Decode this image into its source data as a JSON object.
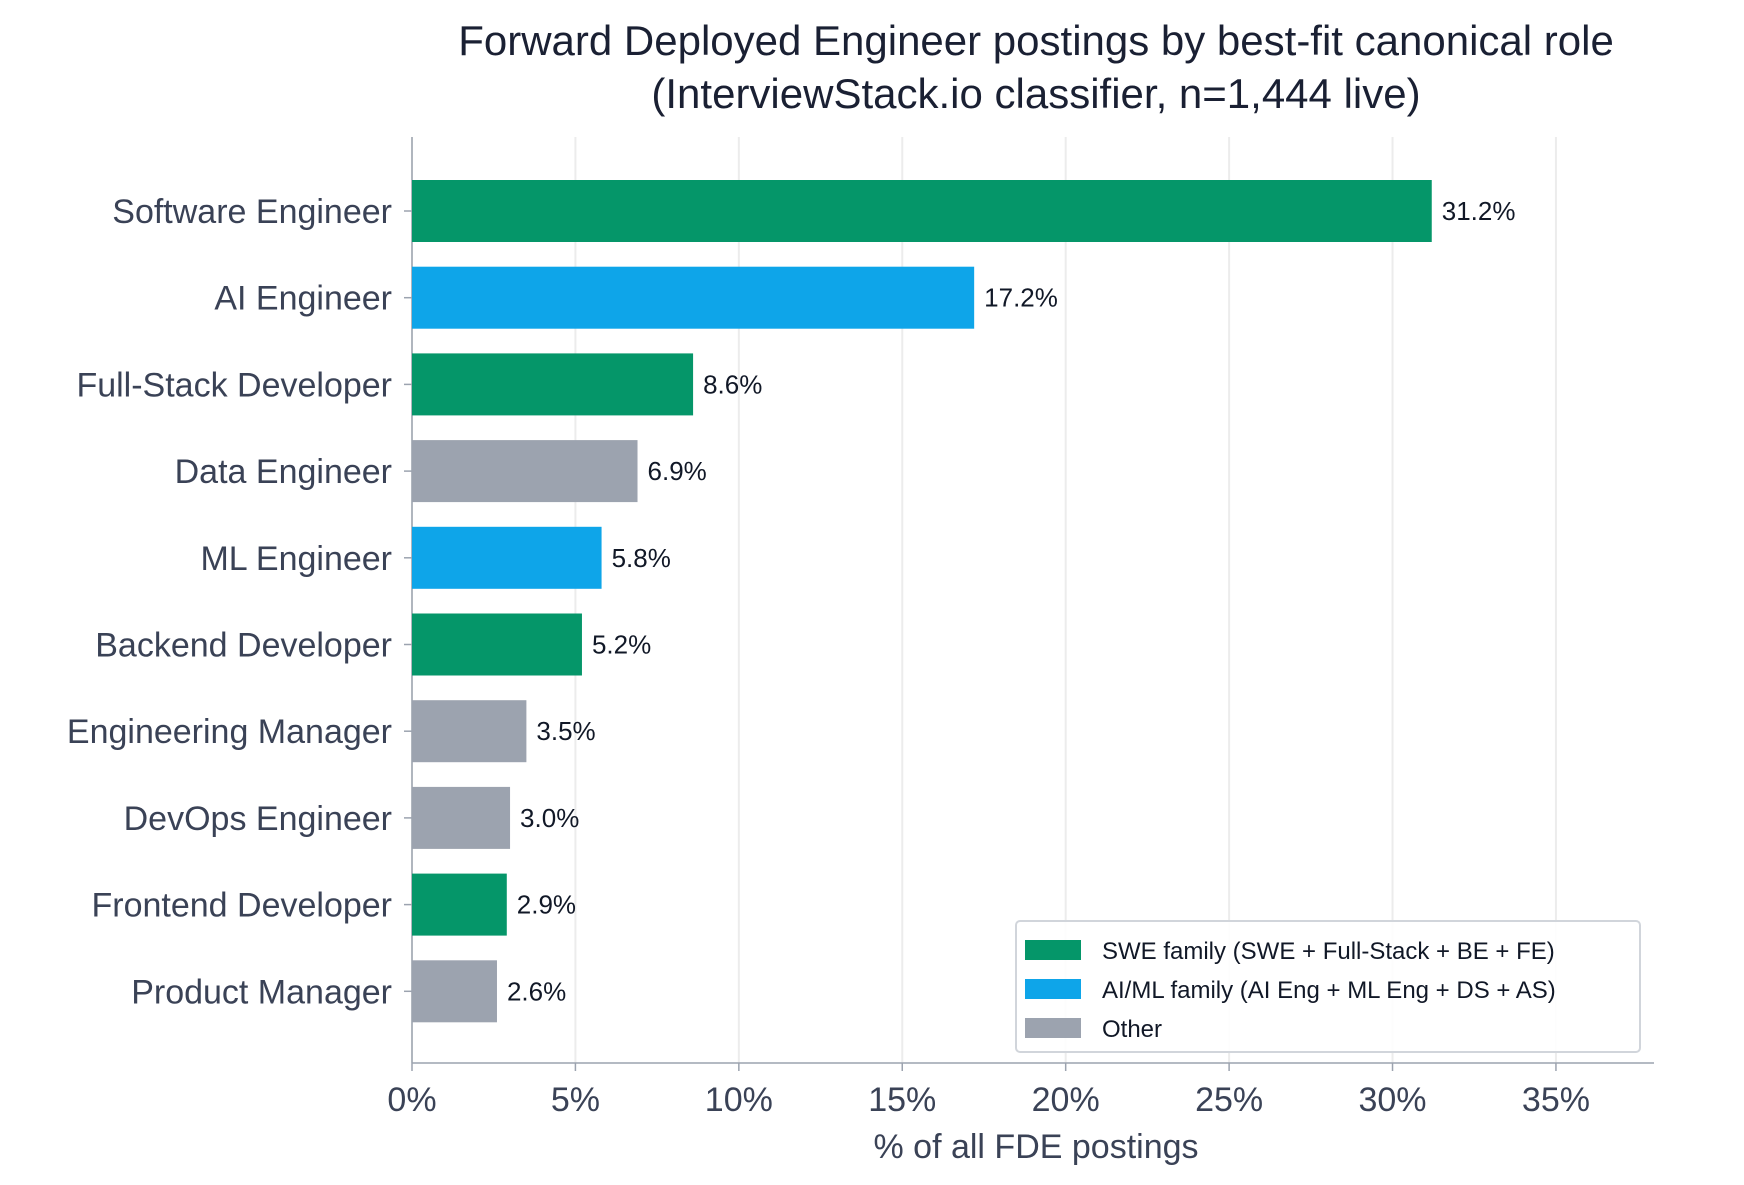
{
  "chart_data": {
    "type": "bar",
    "orientation": "horizontal",
    "title": [
      "Forward Deployed Engineer postings by best-fit canonical role",
      "(InterviewStack.io classifier, n=1,444 live)"
    ],
    "xlabel": "% of all FDE postings",
    "ylabel": "",
    "xlim": [
      0,
      38
    ],
    "xticks": [
      0,
      5,
      10,
      15,
      20,
      25,
      30,
      35
    ],
    "xtick_labels": [
      "0%",
      "5%",
      "10%",
      "15%",
      "20%",
      "25%",
      "30%",
      "35%"
    ],
    "grid": "vertical",
    "categories": [
      "Software Engineer",
      "AI Engineer",
      "Full-Stack Developer",
      "Data Engineer",
      "ML Engineer",
      "Backend Developer",
      "Engineering Manager",
      "DevOps Engineer",
      "Frontend Developer",
      "Product Manager"
    ],
    "values": [
      31.2,
      17.2,
      8.6,
      6.9,
      5.8,
      5.2,
      3.5,
      3.0,
      2.9,
      2.6
    ],
    "value_labels": [
      "31.2%",
      "17.2%",
      "8.6%",
      "6.9%",
      "5.8%",
      "5.2%",
      "3.5%",
      "3.0%",
      "2.9%",
      "2.6%"
    ],
    "families": [
      "swe",
      "aiml",
      "swe",
      "other",
      "aiml",
      "swe",
      "other",
      "other",
      "swe",
      "other"
    ],
    "legend_position": "lower-right",
    "legend": [
      {
        "key": "swe",
        "label": "SWE family (SWE + Full-Stack + BE + FE)",
        "color": "#059669"
      },
      {
        "key": "aiml",
        "label": "AI/ML family (AI Eng + ML Eng + DS + AS)",
        "color": "#0ea5e9"
      },
      {
        "key": "other",
        "label": "Other",
        "color": "#9ca3af"
      }
    ]
  }
}
